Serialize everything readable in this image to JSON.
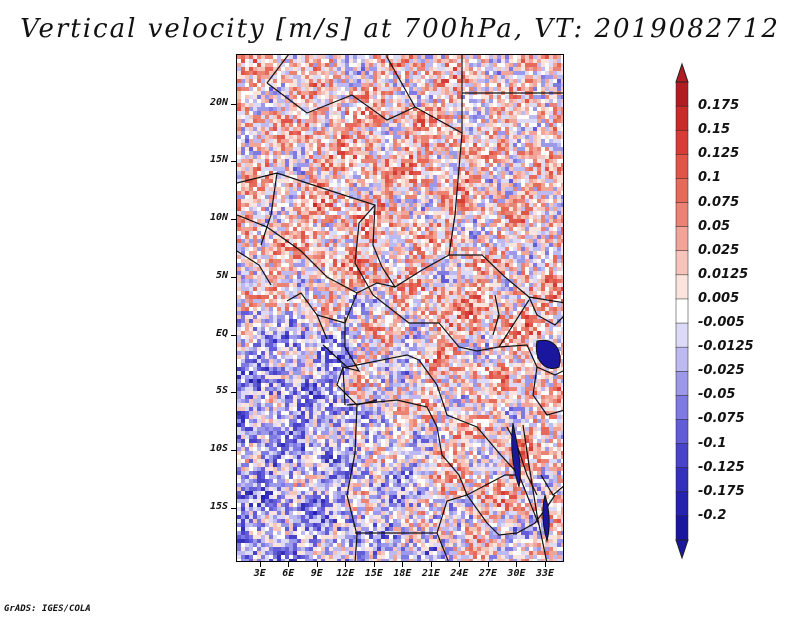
{
  "title": "Vertical velocity [m/s] at 700hPa, VT: 2019082712",
  "credit": "GrADS: IGES/COLA",
  "lat_ticks": [
    "20N",
    "15N",
    "10N",
    "5N",
    "EQ",
    "5S",
    "10S",
    "15S"
  ],
  "lat_values": [
    20,
    15,
    10,
    5,
    0,
    -5,
    -10,
    -15
  ],
  "lon_ticks": [
    "3E",
    "6E",
    "9E",
    "12E",
    "15E",
    "18E",
    "21E",
    "24E",
    "27E",
    "30E",
    "33E"
  ],
  "lon_values": [
    3,
    6,
    9,
    12,
    15,
    18,
    21,
    24,
    27,
    30,
    33
  ],
  "extent": {
    "lon": [
      0.5,
      35
    ],
    "lat": [
      -19.7,
      24.3
    ]
  },
  "colorbar": {
    "labels": [
      "0.175",
      "0.15",
      "0.125",
      "0.1",
      "0.075",
      "0.05",
      "0.025",
      "0.0125",
      "0.005",
      "-0.005",
      "-0.0125",
      "-0.025",
      "-0.05",
      "-0.075",
      "-0.1",
      "-0.125",
      "-0.175",
      "-0.2"
    ],
    "colors": [
      "#b11c22",
      "#c92a2a",
      "#d73c36",
      "#e05548",
      "#e56a5a",
      "#eb8375",
      "#f1a497",
      "#f6c4ba",
      "#fbe4de",
      "#ffffff",
      "#dcdaf7",
      "#bdbaf2",
      "#9c98ea",
      "#7f7ae1",
      "#625cd6",
      "#4943c9",
      "#3530bb",
      "#2621ae",
      "#1a179e"
    ]
  }
}
